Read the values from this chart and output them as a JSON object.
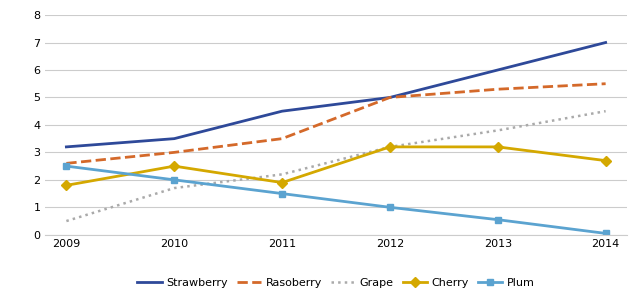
{
  "years": [
    2009,
    2010,
    2011,
    2012,
    2013,
    2014
  ],
  "series": {
    "Strawberry": [
      3.2,
      3.5,
      4.5,
      5.0,
      6.0,
      7.0
    ],
    "Rasoberry": [
      2.6,
      3.0,
      3.5,
      5.0,
      5.3,
      5.5
    ],
    "Grape": [
      0.5,
      1.7,
      2.2,
      3.2,
      3.8,
      4.5
    ],
    "Cherry": [
      1.8,
      2.5,
      1.9,
      3.2,
      3.2,
      2.7
    ],
    "Plum": [
      2.5,
      2.0,
      1.5,
      1.0,
      0.55,
      0.05
    ]
  },
  "colors": {
    "Strawberry": "#2e4999",
    "Rasoberry": "#d4692a",
    "Grape": "#aaaaaa",
    "Cherry": "#d4a800",
    "Plum": "#5ba3d0"
  },
  "linestyles": {
    "Strawberry": "solid",
    "Rasoberry": "dashed",
    "Grape": "dotted",
    "Cherry": "solid",
    "Plum": "solid"
  },
  "markers": {
    "Strawberry": "none",
    "Rasoberry": "none",
    "Grape": "none",
    "Cherry": "D",
    "Plum": "s"
  },
  "linewidths": {
    "Strawberry": 2.0,
    "Rasoberry": 2.0,
    "Grape": 1.8,
    "Cherry": 2.0,
    "Plum": 2.0
  },
  "ylim": [
    0,
    8
  ],
  "yticks": [
    0,
    1,
    2,
    3,
    4,
    5,
    6,
    7,
    8
  ],
  "background_color": "#ffffff",
  "grid_color": "#cccccc",
  "legend_order": [
    "Strawberry",
    "Rasoberry",
    "Grape",
    "Cherry",
    "Plum"
  ]
}
